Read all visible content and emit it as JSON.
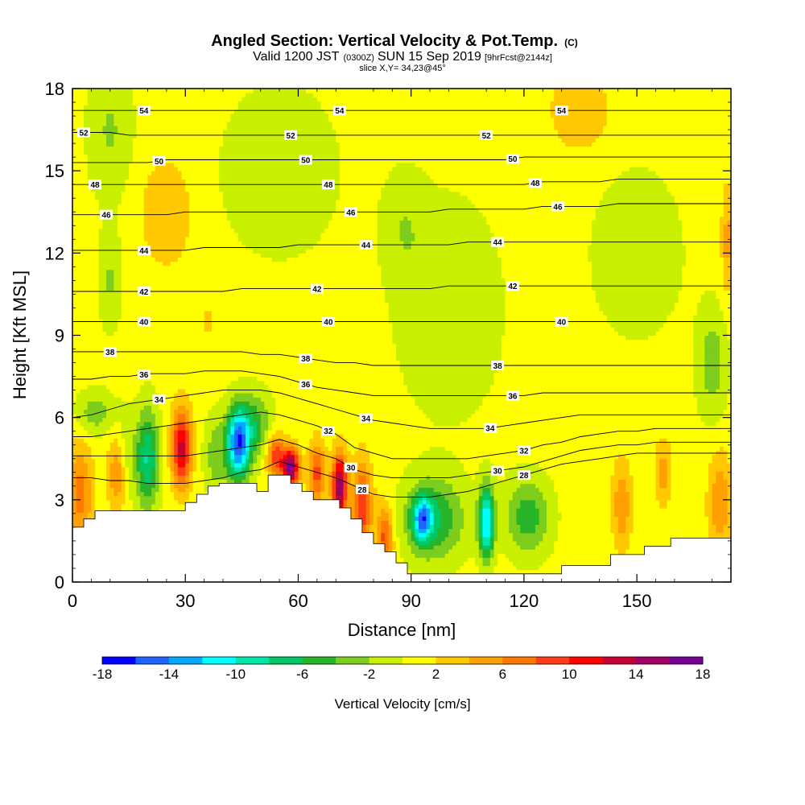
{
  "chart_data": {
    "type": "heatmap",
    "title_main": "Angled Section: Vertical Velocity & Pot.Temp.",
    "title_unit": "(C)",
    "subtitle_parts": {
      "valid": "Valid 1200 JST",
      "zulu": "(0300Z)",
      "date": "SUN 15 Sep 2019",
      "fcst": "[9hrFcst@2144z]"
    },
    "slice": "slice X,Y= 34,23@45°",
    "xlabel": "Distance [nm]",
    "ylabel": "Height [Kft MSL]",
    "xlim": [
      0,
      175
    ],
    "ylim": [
      0,
      18
    ],
    "xticks": [
      "0",
      "30",
      "60",
      "90",
      "120",
      "150"
    ],
    "yticks": [
      "0",
      "3",
      "6",
      "9",
      "12",
      "15",
      "18"
    ],
    "xtick_values": [
      0,
      30,
      60,
      90,
      120,
      150
    ],
    "ytick_values": [
      0,
      3,
      6,
      9,
      12,
      15,
      18
    ],
    "colorbar": {
      "label": "Vertical Velocity [cm/s]",
      "tick_labels": [
        "-18",
        "-14",
        "-10",
        "-6",
        "-2",
        "2",
        "6",
        "10",
        "14",
        "18"
      ],
      "tick_values": [
        -18,
        -14,
        -10,
        -6,
        -2,
        2,
        6,
        10,
        14,
        18
      ],
      "levels": [
        -18,
        -16,
        -14,
        -12,
        -10,
        -8,
        -6,
        -4,
        -2,
        0,
        2,
        4,
        6,
        8,
        10,
        12,
        14,
        16,
        18
      ],
      "colors": [
        "#0000ff",
        "#1e64ff",
        "#00aaff",
        "#00ffff",
        "#00e6aa",
        "#00c864",
        "#28b428",
        "#7dcd1e",
        "#c8f000",
        "#ffff00",
        "#ffc800",
        "#ffa000",
        "#ff7800",
        "#ff3c14",
        "#ff0000",
        "#c80032",
        "#a00064",
        "#780096"
      ]
    },
    "isentropes": [
      {
        "label": "28",
        "heights": [
          3.8,
          3.8,
          3.7,
          3.7,
          3.6,
          3.6,
          3.6,
          3.7,
          3.8,
          4.0,
          4.1,
          4.4,
          4.2,
          4.0,
          3.8,
          3.5,
          3.2,
          3.1,
          3.1,
          3.1,
          3.2,
          3.3,
          3.5,
          3.7,
          3.9,
          4.1,
          4.3,
          4.4,
          4.5,
          4.6,
          4.7,
          4.7,
          4.7,
          4.7,
          4.7,
          4.7
        ]
      },
      {
        "label": "30",
        "heights": [
          4.6,
          4.6,
          4.6,
          4.6,
          4.6,
          4.6,
          4.6,
          4.7,
          4.8,
          4.9,
          5.0,
          5.2,
          5.0,
          4.7,
          4.5,
          4.1,
          3.9,
          3.8,
          3.8,
          3.8,
          3.8,
          3.9,
          4.0,
          4.1,
          4.2,
          4.4,
          4.6,
          4.8,
          4.9,
          5.0,
          5.0,
          5.1,
          5.1,
          5.1,
          5.1,
          5.1
        ]
      },
      {
        "label": "32",
        "heights": [
          5.3,
          5.3,
          5.4,
          5.5,
          5.6,
          5.7,
          5.8,
          5.9,
          6.0,
          6.1,
          6.2,
          6.1,
          5.9,
          5.7,
          5.4,
          4.9,
          4.7,
          4.5,
          4.5,
          4.5,
          4.5,
          4.5,
          4.6,
          4.7,
          4.8,
          5.0,
          5.1,
          5.3,
          5.4,
          5.5,
          5.5,
          5.6,
          5.6,
          5.6,
          5.6,
          5.6
        ]
      },
      {
        "label": "34",
        "heights": [
          6.0,
          6.1,
          6.3,
          6.5,
          6.6,
          6.7,
          6.8,
          6.9,
          7.0,
          7.0,
          7.0,
          6.9,
          6.7,
          6.5,
          6.3,
          6.1,
          5.9,
          5.8,
          5.7,
          5.6,
          5.6,
          5.6,
          5.6,
          5.7,
          5.8,
          5.9,
          6.0,
          6.1,
          6.1,
          6.1,
          6.1,
          6.1,
          6.1,
          6.1,
          6.1,
          6.1
        ]
      },
      {
        "label": "36",
        "heights": [
          7.4,
          7.4,
          7.5,
          7.5,
          7.6,
          7.6,
          7.6,
          7.7,
          7.7,
          7.7,
          7.6,
          7.5,
          7.3,
          7.1,
          7.0,
          6.9,
          6.8,
          6.8,
          6.8,
          6.8,
          6.8,
          6.8,
          6.8,
          6.8,
          6.8,
          6.9,
          6.9,
          6.9,
          6.9,
          6.9,
          6.9,
          6.9,
          6.9,
          6.9,
          6.9,
          6.9
        ]
      },
      {
        "label": "38",
        "heights": [
          8.4,
          8.4,
          8.4,
          8.4,
          8.4,
          8.4,
          8.4,
          8.4,
          8.4,
          8.4,
          8.3,
          8.3,
          8.2,
          8.1,
          8.0,
          8.0,
          7.9,
          7.9,
          7.9,
          7.9,
          7.9,
          7.9,
          7.9,
          7.9,
          7.9,
          7.9,
          7.9,
          7.9,
          7.9,
          7.9,
          7.9,
          7.9,
          7.9,
          7.9,
          7.9,
          7.9
        ]
      },
      {
        "label": "40",
        "heights": [
          9.5,
          9.5,
          9.5,
          9.5,
          9.5,
          9.5,
          9.5,
          9.5,
          9.5,
          9.5,
          9.5,
          9.5,
          9.5,
          9.5,
          9.5,
          9.5,
          9.5,
          9.5,
          9.5,
          9.5,
          9.5,
          9.5,
          9.5,
          9.5,
          9.5,
          9.5,
          9.5,
          9.5,
          9.5,
          9.5,
          9.5,
          9.5,
          9.5,
          9.5,
          9.5,
          9.5
        ]
      },
      {
        "label": "42",
        "heights": [
          10.6,
          10.6,
          10.6,
          10.6,
          10.6,
          10.6,
          10.6,
          10.6,
          10.6,
          10.7,
          10.7,
          10.7,
          10.7,
          10.7,
          10.7,
          10.7,
          10.7,
          10.7,
          10.7,
          10.7,
          10.8,
          10.8,
          10.8,
          10.8,
          10.8,
          10.8,
          10.8,
          10.8,
          10.8,
          10.8,
          10.8,
          10.8,
          10.8,
          10.8,
          10.8,
          10.8
        ]
      },
      {
        "label": "44",
        "heights": [
          12.1,
          12.1,
          12.1,
          12.1,
          12.1,
          12.1,
          12.1,
          12.2,
          12.2,
          12.2,
          12.2,
          12.2,
          12.3,
          12.3,
          12.3,
          12.3,
          12.3,
          12.3,
          12.3,
          12.3,
          12.3,
          12.4,
          12.4,
          12.4,
          12.4,
          12.4,
          12.4,
          12.4,
          12.4,
          12.4,
          12.4,
          12.4,
          12.4,
          12.4,
          12.4,
          12.4
        ]
      },
      {
        "label": "46",
        "heights": [
          13.4,
          13.4,
          13.4,
          13.4,
          13.4,
          13.4,
          13.5,
          13.5,
          13.5,
          13.5,
          13.5,
          13.5,
          13.5,
          13.5,
          13.5,
          13.5,
          13.5,
          13.5,
          13.5,
          13.5,
          13.6,
          13.6,
          13.6,
          13.6,
          13.6,
          13.7,
          13.7,
          13.7,
          13.7,
          13.8,
          13.8,
          13.8,
          13.8,
          13.8,
          13.8,
          13.8
        ]
      },
      {
        "label": "48",
        "heights": [
          14.5,
          14.5,
          14.5,
          14.5,
          14.5,
          14.5,
          14.5,
          14.5,
          14.5,
          14.5,
          14.5,
          14.5,
          14.5,
          14.5,
          14.5,
          14.5,
          14.5,
          14.5,
          14.5,
          14.5,
          14.5,
          14.5,
          14.5,
          14.5,
          14.5,
          14.6,
          14.6,
          14.6,
          14.6,
          14.7,
          14.7,
          14.7,
          14.7,
          14.7,
          14.7,
          14.7
        ]
      },
      {
        "label": "50",
        "heights": [
          15.3,
          15.3,
          15.3,
          15.3,
          15.3,
          15.4,
          15.4,
          15.4,
          15.4,
          15.4,
          15.4,
          15.4,
          15.4,
          15.4,
          15.4,
          15.4,
          15.4,
          15.4,
          15.4,
          15.4,
          15.4,
          15.4,
          15.4,
          15.4,
          15.5,
          15.5,
          15.5,
          15.5,
          15.5,
          15.5,
          15.5,
          15.5,
          15.5,
          15.5,
          15.5,
          15.5
        ]
      },
      {
        "label": "52",
        "heights": [
          16.4,
          16.4,
          16.4,
          16.3,
          16.3,
          16.3,
          16.3,
          16.3,
          16.3,
          16.3,
          16.3,
          16.3,
          16.3,
          16.3,
          16.3,
          16.3,
          16.3,
          16.3,
          16.3,
          16.3,
          16.3,
          16.3,
          16.3,
          16.3,
          16.3,
          16.3,
          16.3,
          16.3,
          16.3,
          16.3,
          16.3,
          16.3,
          16.3,
          16.3,
          16.3,
          16.3
        ]
      },
      {
        "label": "54",
        "heights": [
          17.2,
          17.2,
          17.2,
          17.2,
          17.2,
          17.2,
          17.2,
          17.2,
          17.2,
          17.2,
          17.2,
          17.2,
          17.2,
          17.2,
          17.2,
          17.2,
          17.2,
          17.2,
          17.2,
          17.2,
          17.2,
          17.2,
          17.2,
          17.2,
          17.2,
          17.2,
          17.2,
          17.2,
          17.2,
          17.2,
          17.2,
          17.2,
          17.2,
          17.2,
          17.2,
          17.2
        ]
      }
    ],
    "isentrope_label_positions": [
      {
        "label": "54",
        "x": [
          19,
          71,
          130
        ]
      },
      {
        "label": "52",
        "x": [
          3,
          58,
          110
        ]
      },
      {
        "label": "50",
        "x": [
          23,
          62,
          117
        ]
      },
      {
        "label": "48",
        "x": [
          6,
          68,
          123
        ]
      },
      {
        "label": "46",
        "x": [
          9,
          74,
          129
        ]
      },
      {
        "label": "44",
        "x": [
          19,
          78,
          113
        ]
      },
      {
        "label": "42",
        "x": [
          19,
          65,
          117
        ]
      },
      {
        "label": "40",
        "x": [
          19,
          68,
          130
        ]
      },
      {
        "label": "38",
        "x": [
          10,
          62,
          113
        ]
      },
      {
        "label": "36",
        "x": [
          19,
          62,
          117
        ]
      },
      {
        "label": "34",
        "x": [
          23,
          78,
          111
        ]
      },
      {
        "label": "32",
        "x": [
          68,
          120
        ]
      },
      {
        "label": "30",
        "x": [
          74,
          113
        ]
      },
      {
        "label": "28",
        "x": [
          77,
          120
        ]
      }
    ],
    "terrain": [
      [
        0,
        2.0
      ],
      [
        3,
        2.0
      ],
      [
        3,
        2.3
      ],
      [
        6,
        2.3
      ],
      [
        6,
        2.6
      ],
      [
        30,
        2.6
      ],
      [
        30,
        2.9
      ],
      [
        33,
        2.9
      ],
      [
        33,
        3.2
      ],
      [
        36,
        3.2
      ],
      [
        36,
        3.5
      ],
      [
        39,
        3.5
      ],
      [
        39,
        3.6
      ],
      [
        49,
        3.6
      ],
      [
        49,
        3.3
      ],
      [
        52,
        3.3
      ],
      [
        52,
        3.9
      ],
      [
        58,
        3.9
      ],
      [
        58,
        3.6
      ],
      [
        61,
        3.6
      ],
      [
        61,
        3.3
      ],
      [
        64,
        3.3
      ],
      [
        64,
        3.0
      ],
      [
        71,
        3.0
      ],
      [
        71,
        2.7
      ],
      [
        74,
        2.7
      ],
      [
        74,
        2.3
      ],
      [
        77,
        2.3
      ],
      [
        77,
        1.8
      ],
      [
        80,
        1.8
      ],
      [
        80,
        1.4
      ],
      [
        83,
        1.4
      ],
      [
        83,
        1.1
      ],
      [
        86,
        1.1
      ],
      [
        86,
        0.7
      ],
      [
        89,
        0.7
      ],
      [
        89,
        0.3
      ],
      [
        130,
        0.3
      ],
      [
        130,
        0.6
      ],
      [
        143,
        0.6
      ],
      [
        143,
        1.0
      ],
      [
        152,
        1.0
      ],
      [
        152,
        1.3
      ],
      [
        159,
        1.3
      ],
      [
        159,
        1.6
      ],
      [
        175,
        1.6
      ]
    ],
    "w_blobs": [
      {
        "x": 2,
        "z": 3.2,
        "sx": 3.5,
        "sz": 1.8,
        "w": 6
      },
      {
        "x": 12,
        "z": 4.0,
        "sx": 2.5,
        "sz": 1.4,
        "w": 6
      },
      {
        "x": 14,
        "z": 4.6,
        "sx": 3.0,
        "sz": 1.6,
        "w": -3
      },
      {
        "x": 20,
        "z": 4.5,
        "sx": 3.0,
        "sz": 1.8,
        "w": -9
      },
      {
        "x": 29,
        "z": 4.9,
        "sx": 2.6,
        "sz": 1.4,
        "w": 12
      },
      {
        "x": 38,
        "z": 4.6,
        "sx": 3.0,
        "sz": 1.4,
        "w": -4
      },
      {
        "x": 44,
        "z": 5.0,
        "sx": 3.0,
        "sz": 1.3,
        "w": -15
      },
      {
        "x": 48,
        "z": 5.7,
        "sx": 5.0,
        "sz": 1.2,
        "w": -6
      },
      {
        "x": 54,
        "z": 4.6,
        "sx": 2.4,
        "sz": 0.8,
        "w": 9
      },
      {
        "x": 58,
        "z": 4.2,
        "sx": 2.2,
        "sz": 0.7,
        "w": 16
      },
      {
        "x": 65,
        "z": 4.0,
        "sx": 2.2,
        "sz": 1.1,
        "w": 8
      },
      {
        "x": 71,
        "z": 3.5,
        "sx": 2.0,
        "sz": 1.2,
        "w": 15
      },
      {
        "x": 77,
        "z": 2.8,
        "sx": 2.5,
        "sz": 1.6,
        "w": 9
      },
      {
        "x": 83,
        "z": 1.6,
        "sx": 2.2,
        "sz": 1.2,
        "w": 8
      },
      {
        "x": 96,
        "z": 2.3,
        "sx": 8.0,
        "sz": 1.5,
        "w": -7
      },
      {
        "x": 93,
        "z": 2.3,
        "sx": 2.5,
        "sz": 0.8,
        "w": -11
      },
      {
        "x": 110,
        "z": 2.2,
        "sx": 2.0,
        "sz": 1.3,
        "w": -13
      },
      {
        "x": 121,
        "z": 2.4,
        "sx": 6.0,
        "sz": 1.4,
        "w": -6
      },
      {
        "x": 146,
        "z": 2.8,
        "sx": 2.5,
        "sz": 1.6,
        "w": 5
      },
      {
        "x": 157,
        "z": 4.0,
        "sx": 2.2,
        "sz": 1.2,
        "w": 4
      },
      {
        "x": 172,
        "z": 2.9,
        "sx": 3.0,
        "sz": 1.8,
        "w": 5
      },
      {
        "x": 6,
        "z": 6.2,
        "sx": 5.0,
        "sz": 0.8,
        "w": -4
      },
      {
        "x": 10,
        "z": 11.0,
        "sx": 3.0,
        "sz": 1.8,
        "w": -3
      },
      {
        "x": 10,
        "z": 16.5,
        "sx": 6.0,
        "sz": 2.5,
        "w": -3
      },
      {
        "x": 55,
        "z": 15.0,
        "sx": 15.0,
        "sz": 3.0,
        "w": -2.6
      },
      {
        "x": 100,
        "z": 10.0,
        "sx": 14.0,
        "sz": 4.0,
        "w": -2.5
      },
      {
        "x": 150,
        "z": 12.0,
        "sx": 12.0,
        "sz": 3.0,
        "w": -2.4
      },
      {
        "x": 170,
        "z": 8.0,
        "sx": 4.0,
        "sz": 2.0,
        "w": -4
      },
      {
        "x": 88,
        "z": 13.0,
        "sx": 6.0,
        "sz": 2.0,
        "w": -2.2
      },
      {
        "x": 36,
        "z": 9.5,
        "sx": 1.0,
        "sz": 0.4,
        "w": 4
      },
      {
        "x": 174,
        "z": 12.5,
        "sx": 1.5,
        "sz": 2.0,
        "w": 4
      },
      {
        "x": 135,
        "z": 17.2,
        "sx": 8.0,
        "sz": 1.5,
        "w": 3
      },
      {
        "x": 25,
        "z": 13.5,
        "sx": 7.0,
        "sz": 2.0,
        "w": 3
      }
    ]
  }
}
